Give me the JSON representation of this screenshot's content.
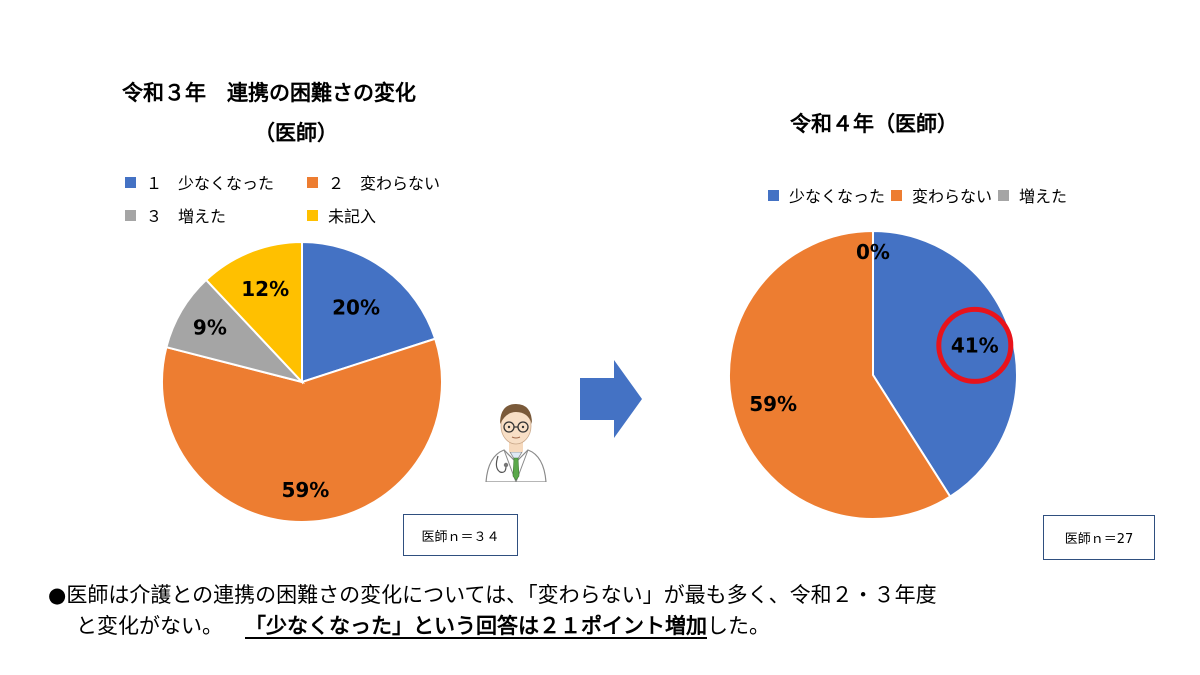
{
  "colors": {
    "blue": "#4472C4",
    "orange": "#ED7D31",
    "gray": "#A5A5A5",
    "yellow": "#FFC000",
    "highlight_ring": "#E8131B",
    "arrow": "#4472C4"
  },
  "left": {
    "title_line1": "令和３年　連携の困難さの変化",
    "title_line2": "（医師）",
    "legend": [
      {
        "label": "１　少なくなった",
        "color": "#4472C4"
      },
      {
        "label": "２　変わらない",
        "color": "#ED7D31"
      },
      {
        "label": "３　増えた",
        "color": "#A5A5A5"
      },
      {
        "label": "未記入",
        "color": "#FFC000"
      }
    ],
    "n_label": "医師ｎ＝３４"
  },
  "right": {
    "title": "令和４年（医師）",
    "legend": [
      {
        "label": "少なくなった",
        "color": "#4472C4"
      },
      {
        "label": "変わらない",
        "color": "#ED7D31"
      },
      {
        "label": "増えた",
        "color": "#A5A5A5"
      }
    ],
    "n_label": "医師ｎ＝27"
  },
  "chart_data": [
    {
      "type": "pie",
      "title": "令和３年　連携の困難さの変化（医師）",
      "categories": [
        "１　少なくなった",
        "２　変わらない",
        "３　増えた",
        "未記入"
      ],
      "values": [
        20,
        59,
        9,
        12
      ],
      "labels": [
        "20%",
        "59%",
        "9%",
        "12%"
      ],
      "legend_position": "top"
    },
    {
      "type": "pie",
      "title": "令和４年（医師）",
      "categories": [
        "少なくなった",
        "変わらない",
        "増えた"
      ],
      "values": [
        41,
        59,
        0
      ],
      "labels": [
        "41%",
        "59%",
        "0%"
      ],
      "highlighted": "41%",
      "legend_position": "top"
    }
  ],
  "note": {
    "bullet": "●",
    "line1": "医師は介護との連携の困難さの変化については、「変わらない」が最も多く、令和２・３年度",
    "line2_plain": "と変化がない。",
    "line2_bold": "「少なくなった」という回答は２１ポイント増加",
    "line2_end": "した。"
  }
}
